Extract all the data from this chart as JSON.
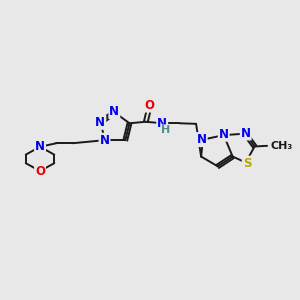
{
  "bg_color": "#e8e8e8",
  "bond_color": "#1a1a1a",
  "N_color": "#0000ee",
  "O_color": "#ee0000",
  "S_color": "#b8a800",
  "H_color": "#4a9090",
  "C_color": "#1a1a1a",
  "line_width": 1.4,
  "font_size": 8.5,
  "figsize": [
    3.0,
    3.0
  ],
  "dpi": 100,
  "xlim": [
    0,
    10
  ],
  "ylim": [
    2,
    8
  ]
}
